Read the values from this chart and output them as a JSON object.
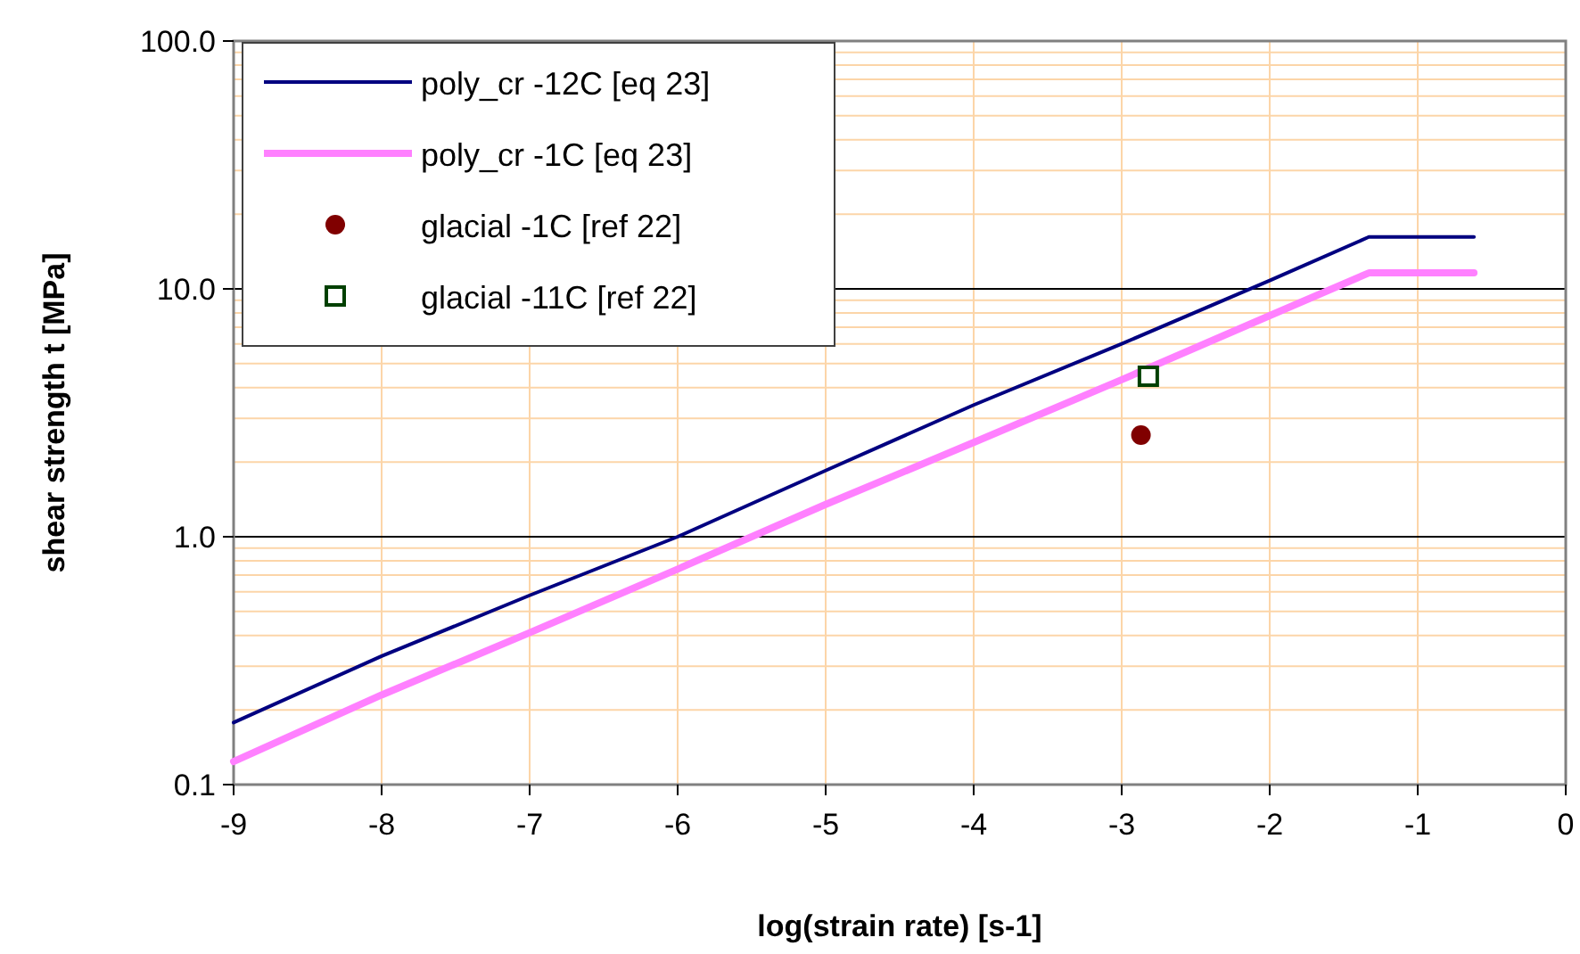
{
  "chart_data": {
    "type": "line",
    "xlabel": "log(strain rate) [s-1]",
    "ylabel": "shear strength t [MPa]",
    "log": "y",
    "grid": true,
    "legend": "top left",
    "xlim": [
      -9,
      0
    ],
    "xticks": [
      -9,
      -8,
      -7,
      -6,
      -5,
      -4,
      -3,
      -2,
      -1,
      0
    ],
    "ylim": [
      0.1,
      100
    ],
    "yticks": [
      {
        "value": 0.1,
        "label": "0.1"
      },
      {
        "value": 1,
        "label": "1.0"
      },
      {
        "value": 10,
        "label": "10.0"
      },
      {
        "value": 100,
        "label": "100.0"
      }
    ],
    "series": [
      {
        "name": "poly_cr -12C [eq 23]",
        "color": "#000080",
        "x": [
          -9,
          -8,
          -7,
          -6,
          -5,
          -4,
          -3,
          -2,
          -1.33,
          -0.62
        ],
        "values": [
          0.178,
          0.33,
          0.58,
          1.0,
          1.85,
          3.4,
          6.0,
          10.8,
          16.2,
          16.2
        ]
      },
      {
        "name": "poly_cr -1C [eq 23]",
        "color": "#ff80ff",
        "x": [
          -9,
          -8,
          -7,
          -6,
          -5,
          -4,
          -3,
          -2,
          -1.33,
          -0.62
        ],
        "values": [
          0.124,
          0.23,
          0.41,
          0.74,
          1.35,
          2.4,
          4.3,
          7.8,
          11.6,
          11.6
        ]
      },
      {
        "name": "glacial -1C [ref 22]",
        "type": "scatter",
        "color": "#800000",
        "marker": "circle",
        "x": [
          -2.87
        ],
        "values": [
          2.57
        ]
      },
      {
        "name": "glacial -11C [ref 22]",
        "type": "scatter",
        "color": "#004000",
        "marker": "square",
        "x": [
          -2.82
        ],
        "values": [
          4.44
        ]
      }
    ]
  }
}
